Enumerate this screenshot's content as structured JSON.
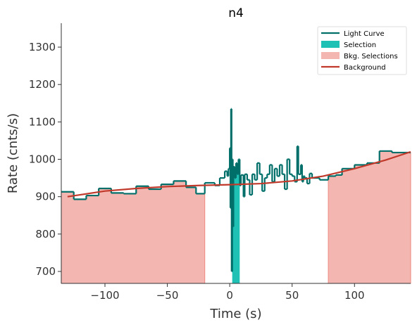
{
  "chart_data": {
    "type": "step",
    "title": "n4",
    "x_label": "Time (s)",
    "y_label": "Rate (cnts/s)",
    "xlim": [
      -135,
      145
    ],
    "ylim": [
      668,
      1364
    ],
    "xticks": [
      {
        "value": -100,
        "label": "−100"
      },
      {
        "value": -50,
        "label": "−50"
      },
      0,
      50,
      100
    ],
    "yticks": [
      700,
      800,
      900,
      1000,
      1100,
      1200,
      1300
    ],
    "legend": "upper right",
    "series": [
      {
        "name": "Light Curve",
        "color": "#006f6a",
        "x": [
          -135,
          -125,
          -115,
          -105,
          -95,
          -85,
          -75,
          -65,
          -55,
          -45,
          -35,
          -27,
          -20,
          -12,
          -8,
          -4,
          -2,
          -1,
          0,
          0.5,
          1,
          1.5,
          2,
          2.5,
          3,
          4,
          5,
          6,
          7,
          8,
          9,
          11,
          12,
          14,
          16,
          18,
          20,
          22,
          24,
          26,
          28,
          30,
          32,
          34,
          36,
          38,
          40,
          42,
          44,
          46,
          48,
          50,
          52,
          54,
          55,
          57,
          58,
          59,
          60,
          62,
          64,
          66,
          72,
          79,
          85,
          90,
          100,
          110,
          120,
          130
        ],
        "values": [
          913,
          893,
          903,
          922,
          910,
          908,
          928,
          920,
          933,
          942,
          925,
          908,
          937,
          930,
          950,
          968,
          955,
          975,
          1030,
          870,
          1135,
          700,
          1000,
          820,
          980,
          950,
          990,
          960,
          1000,
          930,
          958,
          900,
          960,
          945,
          905,
          960,
          945,
          990,
          960,
          915,
          950,
          960,
          985,
          940,
          975,
          955,
          985,
          960,
          920,
          1000,
          960,
          955,
          940,
          1035,
          960,
          985,
          940,
          955,
          950,
          935,
          962,
          950,
          945,
          955,
          958,
          975,
          985,
          990,
          1022,
          1018
        ]
      },
      {
        "name": "Background",
        "color": "#c0392b",
        "x": [
          -130,
          -100,
          -75,
          -50,
          -25,
          0,
          25,
          50,
          75,
          100,
          125,
          145
        ],
        "values": [
          900,
          915,
          922,
          927,
          930,
          932,
          935,
          942,
          955,
          975,
          998,
          1020
        ]
      }
    ],
    "regions": [
      {
        "name": "Selection",
        "color": "#1fc1b5",
        "ranges": [
          [
            2,
            8
          ]
        ]
      },
      {
        "name": "Bkg. Selections",
        "color": "#f4b6b0",
        "ranges": [
          [
            -135,
            -20
          ],
          [
            79,
            145
          ]
        ]
      }
    ]
  }
}
